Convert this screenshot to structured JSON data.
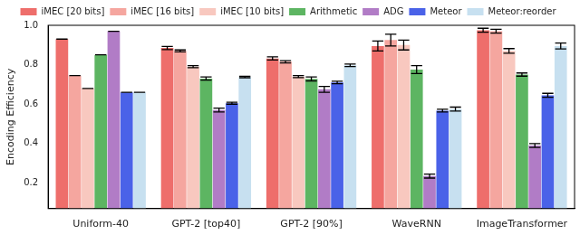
{
  "chart_data": {
    "type": "bar",
    "y_label": "Encoding Efficiency",
    "categories": [
      "Uniform-40",
      "GPT-2 [top40]",
      "GPT-2 [90%]",
      "WaveRNN",
      "ImageTransformer"
    ],
    "series": [
      {
        "name": "iMEC [20 bits]",
        "color": "#ee6e6b",
        "values": [
          0.93,
          0.885,
          0.832,
          0.895,
          0.975
        ],
        "errors": [
          0,
          0.008,
          0.008,
          0.025,
          0.01
        ]
      },
      {
        "name": "iMEC [16 bits]",
        "color": "#f5a69f",
        "values": [
          0.745,
          0.87,
          0.815,
          0.925,
          0.97
        ],
        "errors": [
          0,
          0.005,
          0.006,
          0.03,
          0.01
        ]
      },
      {
        "name": "iMEC [10 bits]",
        "color": "#f8c8bf",
        "values": [
          0.68,
          0.79,
          0.74,
          0.9,
          0.87
        ],
        "errors": [
          0,
          0.005,
          0.005,
          0.025,
          0.012
        ]
      },
      {
        "name": "Arithmetic",
        "color": "#5db562",
        "values": [
          0.85,
          0.73,
          0.728,
          0.775,
          0.75
        ],
        "errors": [
          0,
          0.008,
          0.01,
          0.02,
          0.008
        ]
      },
      {
        "name": "ADG",
        "color": "#b17cc6",
        "values": [
          0.97,
          0.57,
          0.675,
          0.235,
          0.39
        ],
        "errors": [
          0,
          0.01,
          0.015,
          0.01,
          0.01
        ]
      },
      {
        "name": "Meteor",
        "color": "#4a62e8",
        "values": [
          0.66,
          0.605,
          0.71,
          0.567,
          0.645
        ],
        "errors": [
          0,
          0.005,
          0.006,
          0.007,
          0.01
        ]
      },
      {
        "name": "Meteor:reorder",
        "color": "#c7e0f0",
        "values": [
          0.66,
          0.737,
          0.797,
          0.575,
          0.895
        ],
        "errors": [
          0,
          0.004,
          0.006,
          0.01,
          0.015
        ]
      }
    ],
    "ylim": [
      0.07,
      1.0
    ],
    "yticks": [
      0.2,
      0.4,
      0.6,
      0.8,
      {
        "value": 1.0,
        "label": "1.0"
      }
    ],
    "grid": false,
    "legend": "top"
  }
}
